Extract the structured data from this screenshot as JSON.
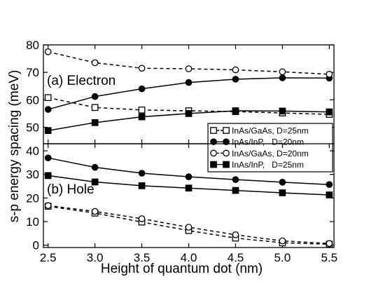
{
  "chart_data": [
    {
      "type": "line",
      "panel_label": "(a) Electron",
      "xlabel": "Height of quantum dot (nm)",
      "ylabel": "s-p energy spacing (meV)",
      "xlim": [
        2.45,
        5.55
      ],
      "ylim": [
        44,
        80
      ],
      "xticks": [
        2.5,
        3.0,
        3.5,
        4.0,
        4.5,
        5.0,
        5.5
      ],
      "xtick_labels": [
        "2.5",
        "3.0",
        "3.5",
        "4.0",
        "4.5",
        "5.0",
        "5.5"
      ],
      "yticks": [
        50,
        60,
        70,
        80
      ],
      "grid": false,
      "x": [
        2.5,
        3.0,
        3.5,
        4.0,
        4.5,
        5.0,
        5.5
      ],
      "series": [
        {
          "name": "InAs/GaAs, D=25nm",
          "marker": "open-square",
          "line": "dashed",
          "values": [
            60.8,
            57.2,
            56.3,
            56.0,
            55.7,
            55.2,
            54.7
          ]
        },
        {
          "name": "InAs/InP, D=20nm",
          "marker": "filled-circle",
          "line": "solid",
          "values": [
            56.5,
            61.2,
            64.0,
            66.3,
            67.5,
            68.0,
            67.9
          ]
        },
        {
          "name": "InAs/GaAs, D=20nm",
          "marker": "open-circle",
          "line": "dashed",
          "values": [
            77.5,
            73.5,
            71.5,
            71.3,
            70.9,
            70.2,
            69.3
          ]
        },
        {
          "name": "InAs/InP, D=25nm",
          "marker": "filled-square",
          "line": "solid",
          "values": [
            48.8,
            51.7,
            53.8,
            55.0,
            56.0,
            55.9,
            55.6
          ]
        }
      ],
      "legend": {
        "placement": "bottom-right",
        "entries": [
          {
            "series": "InAs/GaAs, D=25nm",
            "label": "InAs/GaAs, D=25nm"
          },
          {
            "series": "InAs/InP, D=20nm",
            "label": "InAs/InP,   D=20nm"
          },
          {
            "series": "InAs/GaAs, D=20nm",
            "label": "InAs/GaAs, D=20nm"
          },
          {
            "series": "InAs/InP, D=25nm",
            "label": "InAs/InP,   D=25nm"
          }
        ]
      }
    },
    {
      "type": "line",
      "panel_label": "(b) Hole",
      "xlabel": "Height of quantum dot (nm)",
      "ylabel": "s-p energy spacing (meV)",
      "xlim": [
        2.45,
        5.55
      ],
      "ylim": [
        -1,
        43
      ],
      "xticks": [
        2.5,
        3.0,
        3.5,
        4.0,
        4.5,
        5.0,
        5.5
      ],
      "xtick_labels": [
        "2.5",
        "3.0",
        "3.5",
        "4.0",
        "4.5",
        "5.0",
        "5.5"
      ],
      "yticks": [
        0,
        10,
        20,
        30,
        40
      ],
      "grid": false,
      "x": [
        2.5,
        3.0,
        3.5,
        4.0,
        4.5,
        5.0,
        5.5
      ],
      "series": [
        {
          "name": "InAs/GaAs, D=25nm",
          "marker": "open-square",
          "line": "dashed",
          "values": [
            16.5,
            13.6,
            9.8,
            6.2,
            3.0,
            1.0,
            0.4
          ]
        },
        {
          "name": "InAs/InP, D=20nm",
          "marker": "filled-circle",
          "line": "solid",
          "values": [
            37.0,
            33.0,
            30.5,
            29.0,
            27.8,
            26.7,
            25.7
          ]
        },
        {
          "name": "InAs/GaAs, D=20nm",
          "marker": "open-circle",
          "line": "dashed",
          "values": [
            16.8,
            14.3,
            11.2,
            7.6,
            4.4,
            1.8,
            0.7
          ]
        },
        {
          "name": "InAs/InP, D=25nm",
          "marker": "filled-square",
          "line": "solid",
          "values": [
            29.5,
            26.8,
            25.2,
            24.2,
            23.2,
            22.2,
            21.3
          ]
        }
      ]
    }
  ]
}
